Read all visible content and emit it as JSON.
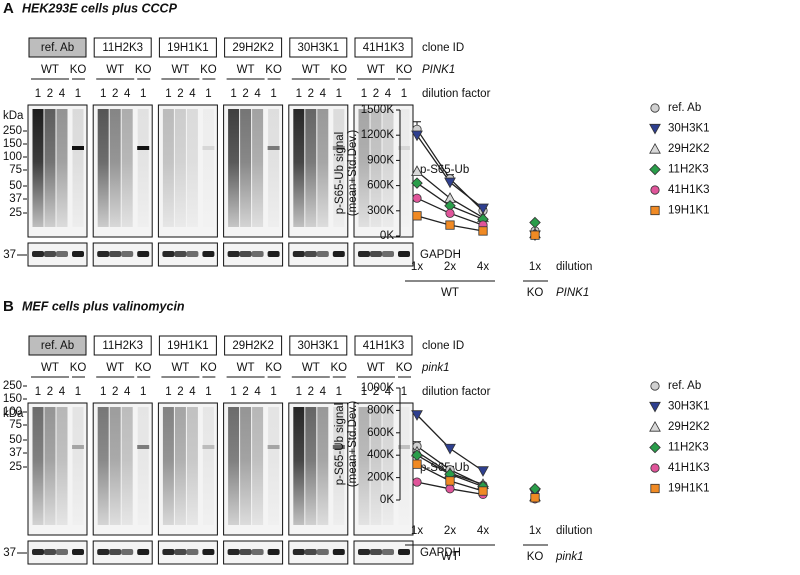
{
  "panels": [
    {
      "letter": "A",
      "title": "HEK293E cells plus CCCP",
      "blot": {
        "clones": [
          "ref. Ab",
          "11H2K3",
          "19H1K1",
          "29H2K2",
          "30H3K1",
          "41H1K3"
        ],
        "clone_label": "clone ID",
        "genotypes": [
          "WT",
          "KO"
        ],
        "gene": "PINK1",
        "dilutions": [
          "1",
          "2",
          "4",
          "1"
        ],
        "dilution_label": "dilution factor",
        "kda_label": "kDa",
        "markers": [
          "250",
          "150",
          "100",
          "75",
          "50",
          "37",
          "25"
        ],
        "target": "p-S65-Ub",
        "loading_marker": "37",
        "loading": "GAPDH"
      }
    },
    {
      "letter": "B",
      "title": "MEF cells plus valinomycin",
      "blot": {
        "clones": [
          "ref. Ab",
          "11H2K3",
          "19H1K1",
          "29H2K2",
          "30H3K1",
          "41H1K3"
        ],
        "clone_label": "clone ID",
        "genotypes": [
          "WT",
          "KO"
        ],
        "gene": "pink1",
        "dilutions": [
          "1",
          "2",
          "4",
          "1"
        ],
        "dilution_label": "dilution factor",
        "kda_label": "kDa",
        "markers": [
          "250",
          "150",
          "100",
          "75",
          "50",
          "37",
          "25"
        ],
        "target": "p-S65-Ub",
        "loading_marker": "37",
        "loading": "GAPDH"
      }
    }
  ],
  "chart_data": [
    {
      "type": "line",
      "y_label": [
        "p-S65-Ub signal",
        "(mean+Std.Dev.)"
      ],
      "x_label": "dilution",
      "categories": [
        "1x",
        "2x",
        "4x",
        "1x"
      ],
      "groups": [
        "WT",
        "KO"
      ],
      "gene": "PINK1",
      "ylim": [
        0,
        1500000
      ],
      "yticks": [
        {
          "value": 0,
          "label": "0K"
        },
        {
          "value": 300000,
          "label": "300K"
        },
        {
          "value": 600000,
          "label": "600K"
        },
        {
          "value": 900000,
          "label": "900K"
        },
        {
          "value": 1200000,
          "label": "1200K"
        },
        {
          "value": 1500000,
          "label": "1500K"
        }
      ],
      "series": [
        {
          "name": "ref. Ab",
          "color": "#d0d0d0",
          "marker": "circle",
          "values": [
            1270000,
            680000,
            300000,
            60000
          ],
          "errors": [
            90000,
            50000,
            30000,
            20000
          ]
        },
        {
          "name": "30H3K1",
          "color": "#2e3f8f",
          "marker": "triangle-down",
          "values": [
            1200000,
            640000,
            330000,
            10000
          ]
        },
        {
          "name": "29H2K2",
          "color": "#d8d8d8",
          "marker": "triangle-up",
          "values": [
            770000,
            450000,
            220000,
            30000
          ]
        },
        {
          "name": "11H2K3",
          "color": "#2a9d4a",
          "marker": "diamond",
          "values": [
            630000,
            360000,
            200000,
            160000
          ]
        },
        {
          "name": "41H1K3",
          "color": "#e0559a",
          "marker": "circle",
          "values": [
            450000,
            270000,
            130000,
            20000
          ]
        },
        {
          "name": "19H1K1",
          "color": "#f08a24",
          "marker": "square",
          "values": [
            240000,
            130000,
            60000,
            10000
          ]
        }
      ]
    },
    {
      "type": "line",
      "y_label": [
        "p-S65-Ub signal",
        "(mean+Std.Dev.)"
      ],
      "x_label": "dilution",
      "categories": [
        "1x",
        "2x",
        "4x",
        "1x"
      ],
      "groups": [
        "WT",
        "KO"
      ],
      "gene": "pink1",
      "ylim": [
        0,
        1000000
      ],
      "yticks": [
        {
          "value": 0,
          "label": "0K"
        },
        {
          "value": 200000,
          "label": "200K"
        },
        {
          "value": 400000,
          "label": "400K"
        },
        {
          "value": 600000,
          "label": "600K"
        },
        {
          "value": 800000,
          "label": "800K"
        },
        {
          "value": 1000000,
          "label": "1000K"
        }
      ],
      "series": [
        {
          "name": "ref. Ab",
          "color": "#d0d0d0",
          "marker": "circle",
          "values": [
            480000,
            270000,
            130000,
            40000
          ],
          "errors": [
            40000,
            30000,
            20000,
            50000
          ]
        },
        {
          "name": "30H3K1",
          "color": "#2e3f8f",
          "marker": "triangle-down",
          "values": [
            760000,
            460000,
            260000,
            60000
          ]
        },
        {
          "name": "29H2K2",
          "color": "#d8d8d8",
          "marker": "triangle-up",
          "values": [
            430000,
            240000,
            140000,
            30000
          ]
        },
        {
          "name": "11H2K3",
          "color": "#2a9d4a",
          "marker": "diamond",
          "values": [
            400000,
            230000,
            120000,
            100000
          ]
        },
        {
          "name": "41H1K3",
          "color": "#e0559a",
          "marker": "circle",
          "values": [
            160000,
            100000,
            50000,
            10000
          ]
        },
        {
          "name": "19H1K1",
          "color": "#f08a24",
          "marker": "square",
          "values": [
            320000,
            170000,
            80000,
            20000
          ]
        }
      ]
    }
  ]
}
